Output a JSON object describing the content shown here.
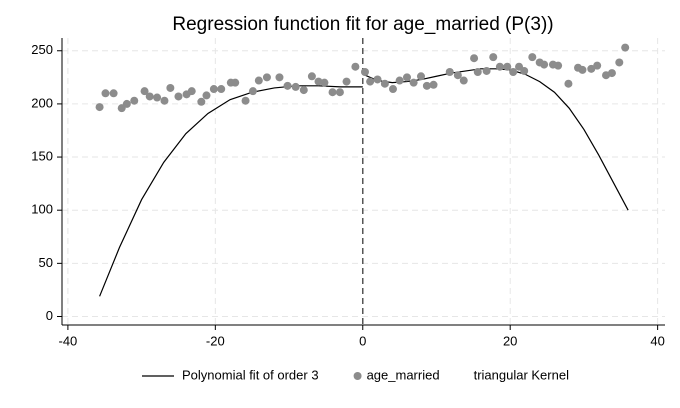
{
  "chart_data": {
    "type": "scatter",
    "title": "Regression function fit for age_married (P(3))",
    "xlim": [
      -40.8,
      41
    ],
    "ylim": [
      -8,
      262
    ],
    "xticks": [
      -40,
      -20,
      0,
      20,
      40
    ],
    "yticks": [
      0,
      50,
      100,
      150,
      200,
      250
    ],
    "grid": true,
    "vline": 0,
    "series": [
      {
        "name": "Polynomial fit of order 3",
        "type": "line",
        "color": "#000000",
        "x": [
          -35.7,
          -33,
          -30,
          -27,
          -24,
          -21,
          -18,
          -15,
          -12,
          -9,
          -6,
          -3,
          0,
          0,
          0,
          2,
          4,
          6,
          8,
          10,
          12,
          14,
          16,
          18,
          20,
          22,
          24,
          26,
          28,
          30,
          32,
          34,
          36
        ],
        "values": [
          19,
          65,
          110,
          145,
          172,
          191,
          204,
          211,
          215,
          217,
          217,
          216,
          216,
          null,
          228,
          222,
          220,
          221,
          223,
          226,
          229,
          231,
          233,
          233,
          232,
          228,
          221,
          211,
          196,
          176,
          152,
          126,
          100
        ]
      },
      {
        "name": "age_married",
        "type": "scatter",
        "color": "#8c8c8c",
        "x": [
          -35.7,
          -34.9,
          -33.8,
          -32.7,
          -32,
          -31,
          -29.6,
          -28.9,
          -27.9,
          -26.9,
          -26.1,
          -25,
          -23.9,
          -23.2,
          -21.9,
          -21.2,
          -20.2,
          -19.2,
          -17.9,
          -17.3,
          -15.9,
          -14.9,
          -14.1,
          -13,
          -11.3,
          -10.2,
          -9.1,
          -8,
          -6.9,
          -6,
          -5.2,
          -4.1,
          -3.1,
          -2.2,
          -1,
          0.3,
          1,
          2,
          3,
          4.1,
          5,
          6,
          6.9,
          7.9,
          8.7,
          9.6,
          11.8,
          12.9,
          13.7,
          15.1,
          15.6,
          16.8,
          17.7,
          18.6,
          19.6,
          20.4,
          21.2,
          21.9,
          23,
          24,
          24.6,
          25.8,
          26.5,
          27.9,
          29.2,
          29.8,
          31,
          31.8,
          33,
          33.8,
          34.8,
          35.6
        ],
        "values": [
          197,
          210,
          210,
          196,
          200,
          203,
          212,
          207,
          206,
          203,
          215,
          207,
          209,
          212,
          202,
          208,
          214,
          214,
          220,
          220,
          203,
          212,
          222,
          225,
          225,
          217,
          216,
          213,
          226,
          221,
          220,
          211,
          211,
          221,
          235,
          230,
          221,
          223,
          219,
          214,
          222,
          225,
          220,
          226,
          217,
          218,
          230,
          227,
          222,
          243,
          230,
          231,
          244,
          235,
          235,
          230,
          235,
          231,
          244,
          239,
          237,
          237,
          236,
          219,
          234,
          232,
          233,
          236,
          227,
          229,
          239,
          253
        ]
      },
      {
        "name": "triangular Kernel"
      }
    ]
  }
}
